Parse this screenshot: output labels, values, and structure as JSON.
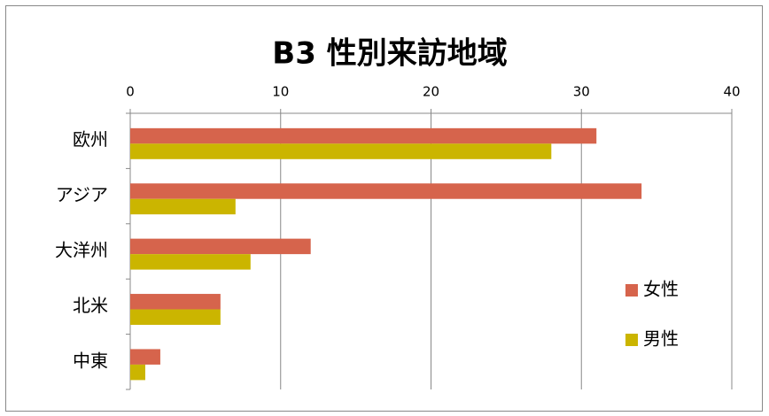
{
  "chart_data": {
    "type": "bar",
    "orientation": "horizontal",
    "title": "B3 性別来訪地域",
    "categories": [
      "欧州",
      "アジア",
      "大洋州",
      "北米",
      "中東"
    ],
    "series": [
      {
        "name": "女性",
        "color": "#d6644c",
        "values": [
          31,
          34,
          12,
          6,
          2
        ]
      },
      {
        "name": "男性",
        "color": "#cbb500",
        "values": [
          28,
          7,
          8,
          6,
          1
        ]
      }
    ],
    "xlim": [
      0,
      40
    ],
    "xticks": [
      0,
      10,
      20,
      30,
      40
    ],
    "grid": true,
    "legend": "right"
  }
}
